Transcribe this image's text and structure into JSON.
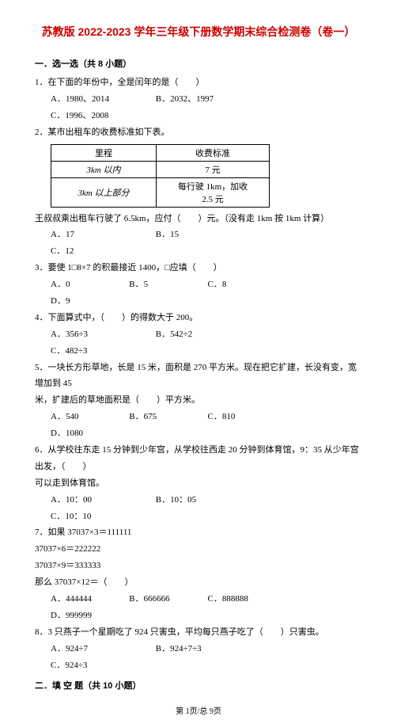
{
  "title": "苏教版 2022-2023 学年三年级下册数学期末综合检测卷（卷一）",
  "section1": {
    "heading": "一．选一选（共 8 小题）",
    "q1": {
      "stem": "1．在下面的年份中，全是闰年的是（　　）",
      "A": "A．1980、2014",
      "B": "B．2032、1997",
      "C": "C．1996、2008"
    },
    "q2": {
      "stem": "2．某市出租车的收费标准如下表。",
      "table": {
        "h1": "里程",
        "h2": "收费标准",
        "r1c1": "3km 以内",
        "r1c2": "7 元",
        "r2c1": "3km 以上部分",
        "r2c2_l1": "每行驶 1km，加收",
        "r2c2_l2": "2.5 元"
      },
      "after": "王叔叔乘出租车行驶了 6.5km，应付（　　）元。（没有走 1km 按 1km 计算）",
      "A": "A．17",
      "B": "B．15",
      "C": "C．12"
    },
    "q3": {
      "stem": "3．要使 1□8×7 的积最接近 1400，□应填（　　）",
      "A": "A．0",
      "B": "B．5",
      "C": "C．8",
      "D": "D．9"
    },
    "q4": {
      "stem": "4．下面算式中，（　　）的得数大于 200。",
      "A": "A．356÷3",
      "B": "B．542÷2",
      "C": "C．482÷3"
    },
    "q5": {
      "stem_l1": "5．一块长方形草地，长是 15 米，面积是 270 平方米。现在把它扩建，长没有变，宽增加到 45",
      "stem_l2": "米，扩建后的草地面积是（　　）平方米。",
      "A": "A．540",
      "B": "B．675",
      "C": "C．810",
      "D": "D．1080"
    },
    "q6": {
      "stem_l1": "6．从学校往东走 15 分钟到少年宫，从学校往西走 20 分钟到体育馆，9：35 从少年宫出发，（　　）",
      "stem_l2": "可以走到体育馆。",
      "A": "A．10：00",
      "B": "B．10：05",
      "C": "C．10：10"
    },
    "q7": {
      "l1": "7．如果 37037×3＝111111",
      "l2": "37037×6＝222222",
      "l3": "37037×9＝333333",
      "l4": "那么 37037×12＝（　　）",
      "A": "A．444444",
      "B": "B．666666",
      "C": "C．888888",
      "D": "D．999999"
    },
    "q8": {
      "stem": "8．3 只燕子一个星期吃了 924 只害虫，平均每只燕子吃了（　　）只害虫。",
      "A": "A．924÷7",
      "B": "B．924÷7÷3",
      "C": "C．924÷3"
    }
  },
  "section2": {
    "heading": "二．填 空 题（共 10 小题）"
  },
  "footer": "第 1页/总 9页"
}
